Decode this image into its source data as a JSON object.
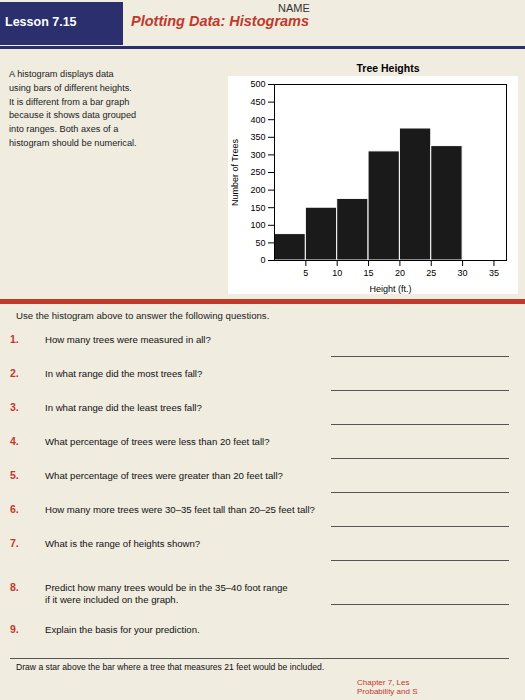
{
  "chart_data": {
    "type": "histogram",
    "title": "Tree Heights",
    "xlabel": "Height (ft.)",
    "ylabel": "Number of Trees",
    "bins": [
      0,
      5,
      10,
      15,
      20,
      25,
      30,
      35
    ],
    "values": [
      75,
      150,
      175,
      310,
      375,
      325,
      0
    ],
    "color": "#1a1a1a",
    "xlim": [
      0,
      37
    ],
    "xticks": [
      5,
      10,
      15,
      20,
      25,
      30,
      35
    ],
    "ylim": [
      0,
      500
    ],
    "yticks": [
      0,
      50,
      100,
      150,
      200,
      250,
      300,
      350,
      400,
      450,
      500
    ],
    "grid": false,
    "lesson": "Lesson 7.15",
    "header_title": "Plotting Data: Histograms",
    "name_label": "NAME",
    "intro_text": "A histogram displays data\nusing bars of different heights.\nIt is different from a bar graph\nbecause it shows data grouped\ninto ranges. Both axes of a\nhistogram should be numerical.",
    "use_text": "Use the histogram above to answer the following questions.",
    "questions": [
      {
        "num": "1.",
        "text": "How many trees were measured in all?"
      },
      {
        "num": "2.",
        "text": "In what range did the most trees fall?"
      },
      {
        "num": "3.",
        "text": "In what range did the least trees fall?"
      },
      {
        "num": "4.",
        "text": "What percentage of trees were less than 20 feet tall?"
      },
      {
        "num": "5.",
        "text": "What percentage of trees were greater than 20 feet tall?"
      },
      {
        "num": "6.",
        "text": "How many more trees were 30–35 feet tall than 20–25 feet tall?"
      },
      {
        "num": "7.",
        "text": "What is the range of heights shown?"
      },
      {
        "num": "8.",
        "text": "Predict how many trees would be in the 35–40 foot range\nif it were included on the graph."
      },
      {
        "num": "9.",
        "text": "Explain the basis for your prediction."
      }
    ],
    "footer_text": "Draw a star above the bar where a tree that measures 21 feet would be included.",
    "chapter_text": "Chapter 7, Les\nProbability and S"
  }
}
